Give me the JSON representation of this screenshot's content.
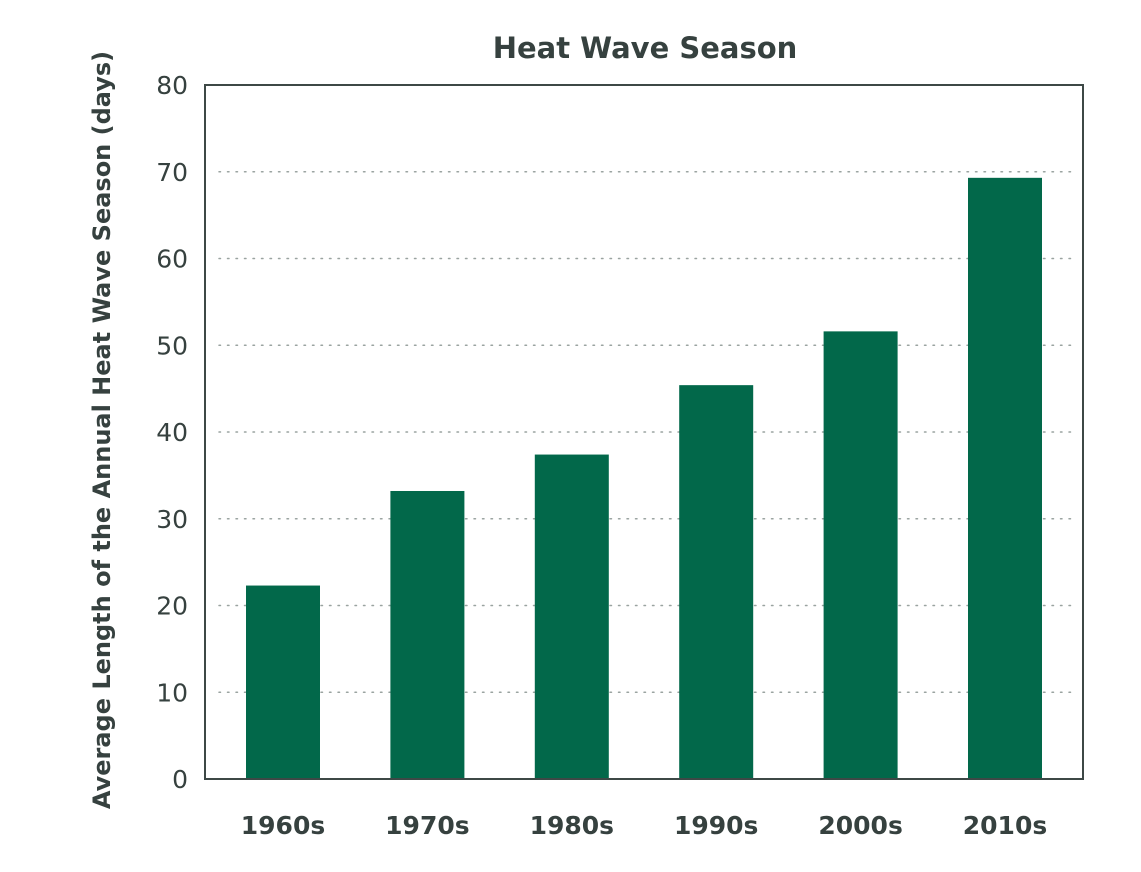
{
  "chart_data": {
    "type": "bar",
    "title": "Heat Wave Season",
    "xlabel": "",
    "ylabel": "Average Length of the Annual Heat Wave Season (days)",
    "categories": [
      "1960s",
      "1970s",
      "1980s",
      "1990s",
      "2000s",
      "2010s"
    ],
    "values": [
      22.3,
      33.2,
      37.4,
      45.4,
      51.6,
      69.3
    ],
    "ylim": [
      0,
      80
    ],
    "yticks": [
      0,
      10,
      20,
      30,
      40,
      50,
      60,
      70,
      80
    ],
    "grid": true,
    "legend": "none",
    "bar_color": "#02684a"
  }
}
